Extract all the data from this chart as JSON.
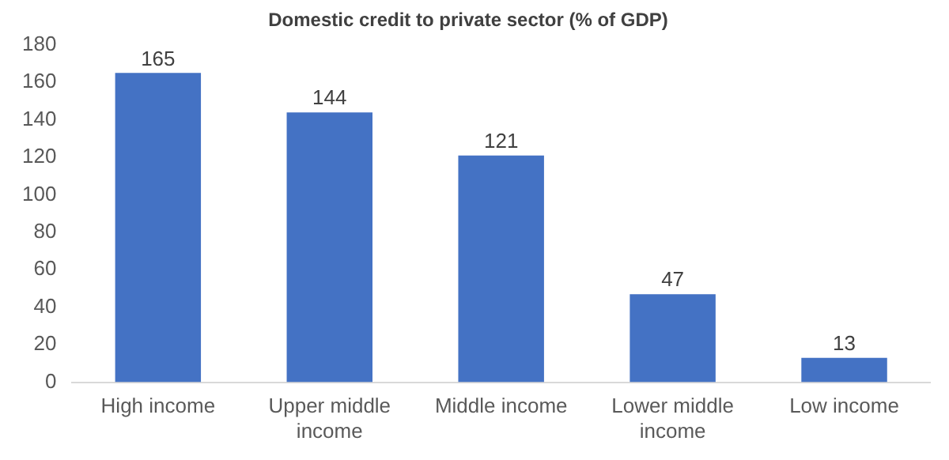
{
  "chart_data": {
    "type": "bar",
    "title": "Domestic credit to private sector (% of GDP)",
    "categories": [
      "High income",
      "Upper middle income",
      "Middle income",
      "Lower middle income",
      "Low income"
    ],
    "values": [
      165,
      144,
      121,
      47,
      13
    ],
    "color": "#4472c4",
    "ylim": [
      0,
      180
    ],
    "yticks": [
      0,
      20,
      40,
      60,
      80,
      100,
      120,
      140,
      160,
      180
    ],
    "grid": false,
    "legend": false,
    "data_labels": true
  }
}
